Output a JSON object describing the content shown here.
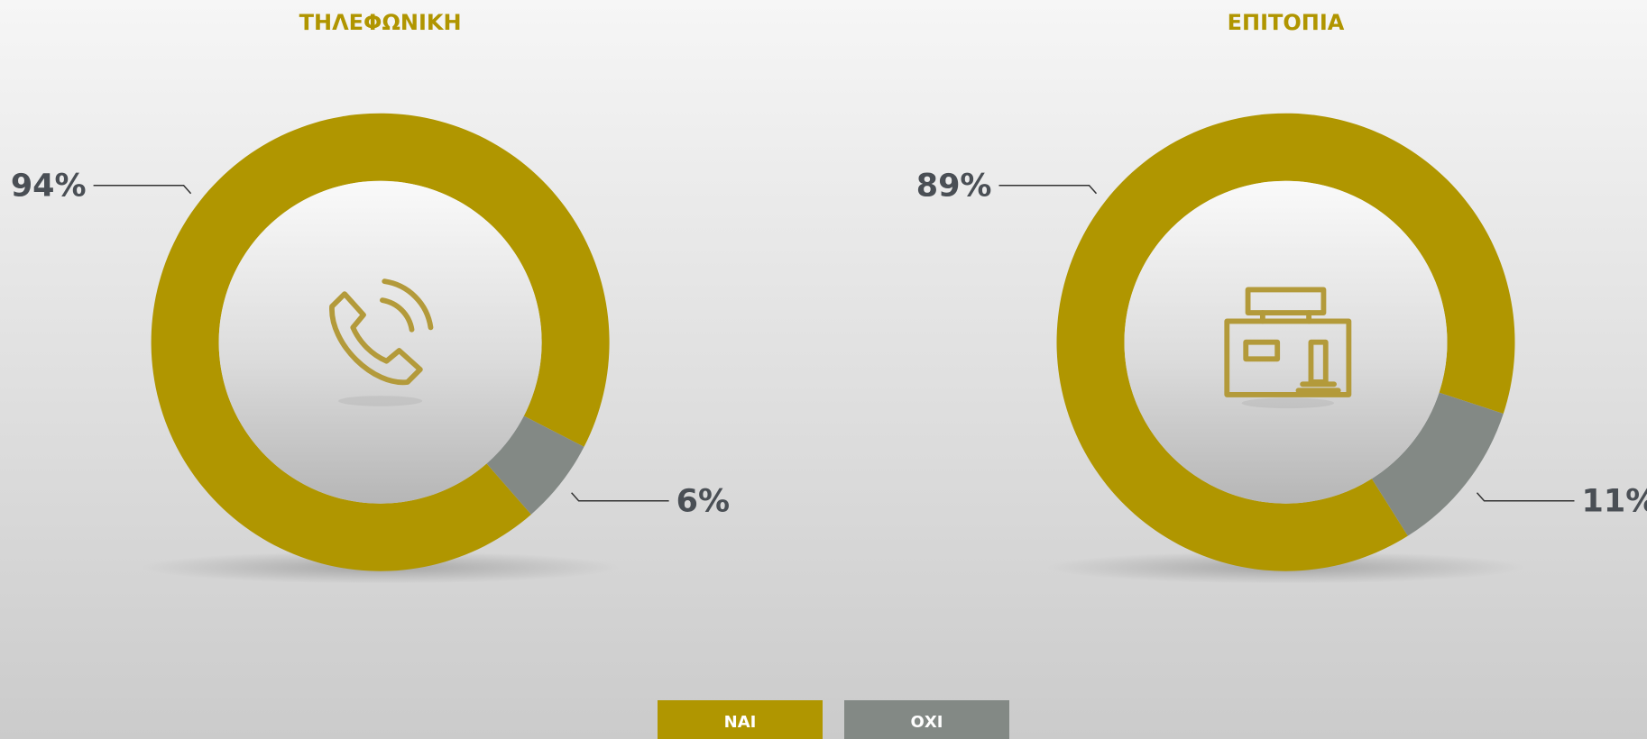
{
  "chart_data": [
    {
      "type": "pie",
      "title": "ΤΗΛΕΦΩΝΙΚΗ",
      "categories": [
        "ΝΑΙ",
        "ΟΧΙ"
      ],
      "values": [
        94,
        6
      ],
      "value_labels": [
        "94%",
        "6%"
      ],
      "colors": [
        "#b09600",
        "#838985"
      ]
    },
    {
      "type": "pie",
      "title": "ΕΠΙΤΟΠΙΑ",
      "categories": [
        "ΝΑΙ",
        "ΟΧΙ"
      ],
      "values": [
        89,
        11
      ],
      "value_labels": [
        "89%",
        "11%"
      ],
      "colors": [
        "#b09600",
        "#838985"
      ]
    }
  ]
}
